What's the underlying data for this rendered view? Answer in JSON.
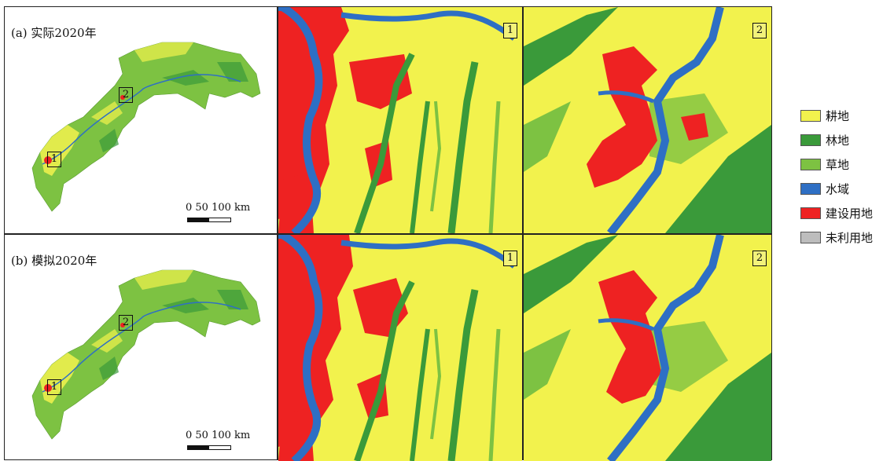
{
  "panels": [
    {
      "label": "(a) 实际2020年",
      "inset1": "1",
      "inset2": "2"
    },
    {
      "label": "(b) 模拟2020年",
      "inset1": "1",
      "inset2": "2"
    }
  ],
  "scale": {
    "text": "0   50 100 km"
  },
  "zoom_labels": [
    "1",
    "2"
  ],
  "legend": [
    {
      "label": "耕地",
      "color": "#f2f24d"
    },
    {
      "label": "林地",
      "color": "#3a9a3a"
    },
    {
      "label": "草地",
      "color": "#7dc242"
    },
    {
      "label": "水域",
      "color": "#2e6fc4"
    },
    {
      "label": "建设用地",
      "color": "#ee2222"
    },
    {
      "label": "未利用地",
      "color": "#bdbdbd"
    }
  ]
}
